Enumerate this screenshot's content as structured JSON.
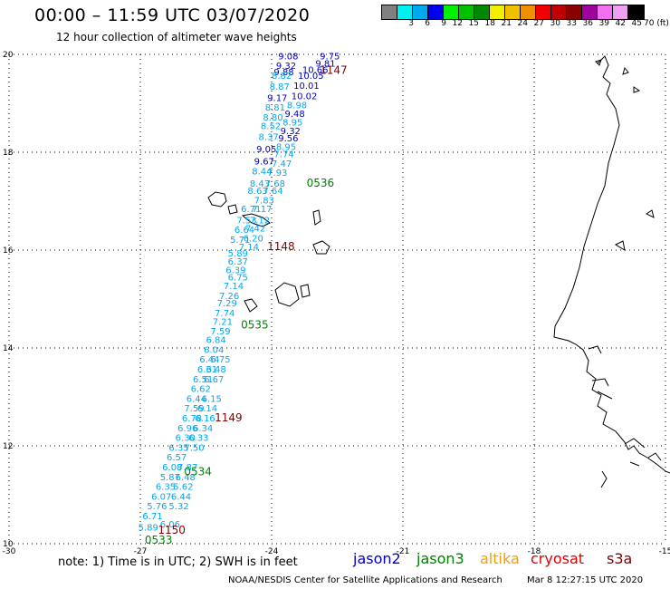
{
  "title": "00:00 – 11:59 UTC 03/07/2020",
  "subtitle": "12 hour collection of altimeter wave heights",
  "colorbar": {
    "colors": [
      "#808080",
      "#00f0f0",
      "#00a8f0",
      "#0000f0",
      "#00f000",
      "#00c000",
      "#008800",
      "#f0f000",
      "#f0c000",
      "#f09000",
      "#f00000",
      "#c00000",
      "#880000",
      "#a000a0",
      "#f070f0",
      "#f0a0f0",
      "#000000"
    ],
    "labels": [
      "",
      "3",
      "6",
      "9",
      "12",
      "15",
      "18",
      "21",
      "24",
      "27",
      "30",
      "33",
      "36",
      "39",
      "42",
      "45",
      "70 (ft)"
    ]
  },
  "axes": {
    "x_ticks": [
      "-30",
      "-27",
      "-24",
      "-21",
      "-18",
      "-15"
    ],
    "y_ticks": [
      "20",
      "18",
      "16",
      "14",
      "12",
      "10"
    ],
    "x_range": [
      -30,
      -15
    ],
    "y_range": [
      10,
      20
    ]
  },
  "track_labels": [
    {
      "text": "0536",
      "color": "#008000",
      "lon": -23.2,
      "lat": 17.3
    },
    {
      "text": "1148",
      "color": "#800000",
      "lon": -24.1,
      "lat": 16.0
    },
    {
      "text": "0535",
      "color": "#008000",
      "lon": -24.7,
      "lat": 14.4
    },
    {
      "text": "1149",
      "color": "#800000",
      "lon": -25.3,
      "lat": 12.5
    },
    {
      "text": "0534",
      "color": "#008000",
      "lon": -26.0,
      "lat": 11.4
    },
    {
      "text": "1150",
      "color": "#800000",
      "lon": -26.6,
      "lat": 10.2
    },
    {
      "text": "0533",
      "color": "#008000",
      "lon": -26.9,
      "lat": 10.0
    },
    {
      "text": "1147",
      "color": "#800000",
      "lon": -22.9,
      "lat": 19.6
    }
  ],
  "wave_points": [
    {
      "v": "9.08",
      "c": "#0000c0",
      "lon": -23.85,
      "lat": 19.9
    },
    {
      "v": "9.75",
      "c": "#0000c0",
      "lon": -22.9,
      "lat": 19.9
    },
    {
      "v": "9.32",
      "c": "#0000c0",
      "lon": -23.9,
      "lat": 19.7
    },
    {
      "v": "9.81",
      "c": "#0000c0",
      "lon": -23.0,
      "lat": 19.75
    },
    {
      "v": "10.66",
      "c": "#0000c0",
      "lon": -23.3,
      "lat": 19.62
    },
    {
      "v": "9.88",
      "c": "#0000c0",
      "lon": -23.95,
      "lat": 19.57
    },
    {
      "v": "10.05",
      "c": "#0000c0",
      "lon": -23.4,
      "lat": 19.5
    },
    {
      "v": "8.82",
      "c": "#00a8f0",
      "lon": -24.0,
      "lat": 19.5
    },
    {
      "v": "10.01",
      "c": "#0000c0",
      "lon": -23.5,
      "lat": 19.3
    },
    {
      "v": "8.87",
      "c": "#00a8f0",
      "lon": -24.05,
      "lat": 19.28
    },
    {
      "v": "10.02",
      "c": "#0000c0",
      "lon": -23.55,
      "lat": 19.08
    },
    {
      "v": "9.17",
      "c": "#0000c0",
      "lon": -24.1,
      "lat": 19.05
    },
    {
      "v": "8.98",
      "c": "#00a8f0",
      "lon": -23.65,
      "lat": 18.9
    },
    {
      "v": "8.81",
      "c": "#00a8f0",
      "lon": -24.15,
      "lat": 18.85
    },
    {
      "v": "9.48",
      "c": "#0000c0",
      "lon": -23.7,
      "lat": 18.72
    },
    {
      "v": "8.80",
      "c": "#00a8f0",
      "lon": -24.2,
      "lat": 18.65
    },
    {
      "v": "8.95",
      "c": "#00a8f0",
      "lon": -23.75,
      "lat": 18.55
    },
    {
      "v": "8.52",
      "c": "#00a8f0",
      "lon": -24.25,
      "lat": 18.47
    },
    {
      "v": "9.32",
      "c": "#0000c0",
      "lon": -23.8,
      "lat": 18.37
    },
    {
      "v": "8.37",
      "c": "#00a8f0",
      "lon": -24.3,
      "lat": 18.25
    },
    {
      "v": "9.56",
      "c": "#0000c0",
      "lon": -23.85,
      "lat": 18.22
    },
    {
      "v": "8.95",
      "c": "#00a8f0",
      "lon": -23.9,
      "lat": 18.05
    },
    {
      "v": "9.05",
      "c": "#0000c0",
      "lon": -24.35,
      "lat": 18.0
    },
    {
      "v": "7.74",
      "c": "#00a8f0",
      "lon": -23.95,
      "lat": 17.9
    },
    {
      "v": "9.67",
      "c": "#0000c0",
      "lon": -24.4,
      "lat": 17.75
    },
    {
      "v": "7.47",
      "c": "#00a8f0",
      "lon": -24.0,
      "lat": 17.7
    },
    {
      "v": "8.44",
      "c": "#00a8f0",
      "lon": -24.45,
      "lat": 17.55
    },
    {
      "v": "7.93",
      "c": "#00a8f0",
      "lon": -24.1,
      "lat": 17.52
    },
    {
      "v": "8.43",
      "c": "#00a8f0",
      "lon": -24.5,
      "lat": 17.3
    },
    {
      "v": "7.68",
      "c": "#00a8f0",
      "lon": -24.15,
      "lat": 17.3
    },
    {
      "v": "8.63",
      "c": "#00a8f0",
      "lon": -24.55,
      "lat": 17.15
    },
    {
      "v": "7.64",
      "c": "#00a8f0",
      "lon": -24.2,
      "lat": 17.15
    },
    {
      "v": "7.83",
      "c": "#00a8f0",
      "lon": -24.4,
      "lat": 16.95
    },
    {
      "v": "6.71",
      "c": "#00a8f0",
      "lon": -24.7,
      "lat": 16.78
    },
    {
      "v": "7.17",
      "c": "#00a8f0",
      "lon": -24.45,
      "lat": 16.78
    },
    {
      "v": "7.53",
      "c": "#00a8f0",
      "lon": -24.8,
      "lat": 16.55
    },
    {
      "v": "7.12",
      "c": "#00a8f0",
      "lon": -24.5,
      "lat": 16.55
    },
    {
      "v": "6.64",
      "c": "#00a8f0",
      "lon": -24.85,
      "lat": 16.35
    },
    {
      "v": "7.42",
      "c": "#00a8f0",
      "lon": -24.6,
      "lat": 16.38
    },
    {
      "v": "6.20",
      "c": "#00a8f0",
      "lon": -24.65,
      "lat": 16.18
    },
    {
      "v": "5.71",
      "c": "#00a8f0",
      "lon": -24.95,
      "lat": 16.15
    },
    {
      "v": "7.14",
      "c": "#00a8f0",
      "lon": -24.75,
      "lat": 16.0
    },
    {
      "v": "5.89",
      "c": "#00a8f0",
      "lon": -25.0,
      "lat": 15.87
    },
    {
      "v": "6.37",
      "c": "#00a8f0",
      "lon": -25.0,
      "lat": 15.7
    },
    {
      "v": "6.39",
      "c": "#00a8f0",
      "lon": -25.05,
      "lat": 15.53
    },
    {
      "v": "6.75",
      "c": "#00a8f0",
      "lon": -25.0,
      "lat": 15.38
    },
    {
      "v": "7.14",
      "c": "#00a8f0",
      "lon": -25.1,
      "lat": 15.2
    },
    {
      "v": "7.26",
      "c": "#00a8f0",
      "lon": -25.2,
      "lat": 15.0
    },
    {
      "v": "7.29",
      "c": "#00a8f0",
      "lon": -25.25,
      "lat": 14.85
    },
    {
      "v": "7.74",
      "c": "#00a8f0",
      "lon": -25.3,
      "lat": 14.65
    },
    {
      "v": "7.21",
      "c": "#00a8f0",
      "lon": -25.35,
      "lat": 14.47
    },
    {
      "v": "7.59",
      "c": "#00a8f0",
      "lon": -25.4,
      "lat": 14.28
    },
    {
      "v": "6.84",
      "c": "#00a8f0",
      "lon": -25.5,
      "lat": 14.1
    },
    {
      "v": "6.04",
      "c": "#00a8f0",
      "lon": -25.55,
      "lat": 13.9
    },
    {
      "v": "6.44",
      "c": "#00a8f0",
      "lon": -25.65,
      "lat": 13.7
    },
    {
      "v": "6.75",
      "c": "#00a8f0",
      "lon": -25.4,
      "lat": 13.7
    },
    {
      "v": "6.31",
      "c": "#00a8f0",
      "lon": -25.7,
      "lat": 13.5
    },
    {
      "v": "6.48",
      "c": "#00a8f0",
      "lon": -25.5,
      "lat": 13.5
    },
    {
      "v": "6.51",
      "c": "#00a8f0",
      "lon": -25.8,
      "lat": 13.3
    },
    {
      "v": "6.67",
      "c": "#00a8f0",
      "lon": -25.55,
      "lat": 13.3
    },
    {
      "v": "6.62",
      "c": "#00a8f0",
      "lon": -25.85,
      "lat": 13.1
    },
    {
      "v": "6.44",
      "c": "#00a8f0",
      "lon": -25.95,
      "lat": 12.9
    },
    {
      "v": "6.15",
      "c": "#00a8f0",
      "lon": -25.6,
      "lat": 12.9
    },
    {
      "v": "7.59",
      "c": "#00a8f0",
      "lon": -26.0,
      "lat": 12.7
    },
    {
      "v": "6.14",
      "c": "#00a8f0",
      "lon": -25.7,
      "lat": 12.7
    },
    {
      "v": "6.78",
      "c": "#00a8f0",
      "lon": -26.05,
      "lat": 12.5
    },
    {
      "v": "6.16",
      "c": "#00a8f0",
      "lon": -25.75,
      "lat": 12.5
    },
    {
      "v": "6.96",
      "c": "#00a8f0",
      "lon": -26.15,
      "lat": 12.3
    },
    {
      "v": "6.34",
      "c": "#00a8f0",
      "lon": -25.8,
      "lat": 12.3
    },
    {
      "v": "6.30",
      "c": "#00a8f0",
      "lon": -26.2,
      "lat": 12.1
    },
    {
      "v": "6.33",
      "c": "#00a8f0",
      "lon": -25.9,
      "lat": 12.1
    },
    {
      "v": "6.35",
      "c": "#00a8f0",
      "lon": -26.35,
      "lat": 11.9
    },
    {
      "v": "7.50",
      "c": "#00a8f0",
      "lon": -26.0,
      "lat": 11.9
    },
    {
      "v": "6.57",
      "c": "#00a8f0",
      "lon": -26.4,
      "lat": 11.7
    },
    {
      "v": "6.08",
      "c": "#00a8f0",
      "lon": -26.5,
      "lat": 11.5
    },
    {
      "v": "7.87",
      "c": "#00a8f0",
      "lon": -26.15,
      "lat": 11.5
    },
    {
      "v": "5.87",
      "c": "#00a8f0",
      "lon": -26.55,
      "lat": 11.3
    },
    {
      "v": "6.48",
      "c": "#00a8f0",
      "lon": -26.2,
      "lat": 11.3
    },
    {
      "v": "6.35",
      "c": "#00a8f0",
      "lon": -26.65,
      "lat": 11.1
    },
    {
      "v": "5.62",
      "c": "#00a8f0",
      "lon": -26.25,
      "lat": 11.1
    },
    {
      "v": "6.07",
      "c": "#00a8f0",
      "lon": -26.75,
      "lat": 10.9
    },
    {
      "v": "6.44",
      "c": "#00a8f0",
      "lon": -26.3,
      "lat": 10.9
    },
    {
      "v": "5.76",
      "c": "#00a8f0",
      "lon": -26.85,
      "lat": 10.7
    },
    {
      "v": "5.32",
      "c": "#00a8f0",
      "lon": -26.35,
      "lat": 10.7
    },
    {
      "v": "6.71",
      "c": "#00a8f0",
      "lon": -26.95,
      "lat": 10.5
    },
    {
      "v": "6.06",
      "c": "#00a8f0",
      "lon": -26.55,
      "lat": 10.33
    },
    {
      "v": "5.89",
      "c": "#00a8f0",
      "lon": -27.05,
      "lat": 10.27
    }
  ],
  "note": "note: 1) Time is in UTC; 2) SWH is in feet",
  "satellites": [
    {
      "name": "jason2",
      "color": "#0000c8"
    },
    {
      "name": "jason3",
      "color": "#008000"
    },
    {
      "name": "altika",
      "color": "#f0a000"
    },
    {
      "name": "cryosat",
      "color": "#e00000"
    },
    {
      "name": "s3a",
      "color": "#800000"
    }
  ],
  "credit": "NOAA/NESDIS Center for Satellite Applications and Research",
  "timestamp": "Mar  8 12:27:15 UTC 2020"
}
